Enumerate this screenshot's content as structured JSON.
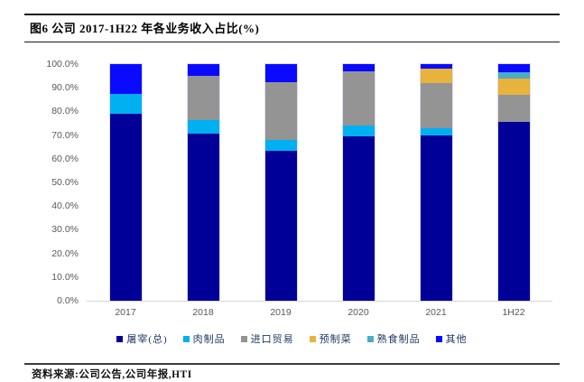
{
  "title": "图6  公司 2017-1H22 年各业务收入占比(%)",
  "source_note": "资料来源:公司公告,公司年报,HTI",
  "chart_data": {
    "type": "bar",
    "stacked": true,
    "title": "公司 2017-1H22 年各业务收入占比(%)",
    "xlabel": "",
    "ylabel": "",
    "categories": [
      "2017",
      "2018",
      "2019",
      "2020",
      "2021",
      "1H22"
    ],
    "series": [
      {
        "name": "屠宰(总)",
        "color": "#000099",
        "values": [
          79.0,
          70.5,
          63.5,
          69.5,
          70.0,
          75.5
        ]
      },
      {
        "name": "肉制品",
        "color": "#00B0F0",
        "values": [
          8.5,
          6.0,
          4.5,
          4.5,
          3.0,
          0.0
        ]
      },
      {
        "name": "进口贸易",
        "color": "#949494",
        "values": [
          0.0,
          18.5,
          24.5,
          23.0,
          19.0,
          11.5
        ]
      },
      {
        "name": "预制菜",
        "color": "#E8B33C",
        "values": [
          0.0,
          0.0,
          0.0,
          0.0,
          6.0,
          7.0
        ]
      },
      {
        "name": "熟食制品",
        "color": "#4BACC6",
        "values": [
          0.0,
          0.0,
          0.0,
          0.0,
          0.0,
          2.5
        ]
      },
      {
        "name": "其他",
        "color": "#0A0AFF",
        "values": [
          12.5,
          5.0,
          7.5,
          3.0,
          2.0,
          3.5
        ]
      }
    ],
    "ylim": [
      0,
      100
    ],
    "yticks": [
      "100.0%",
      "90.0%",
      "80.0%",
      "70.0%",
      "60.0%",
      "50.0%",
      "40.0%",
      "30.0%",
      "20.0%",
      "10.0%",
      "0.0%"
    ],
    "grid": false,
    "legend_position": "bottom"
  }
}
